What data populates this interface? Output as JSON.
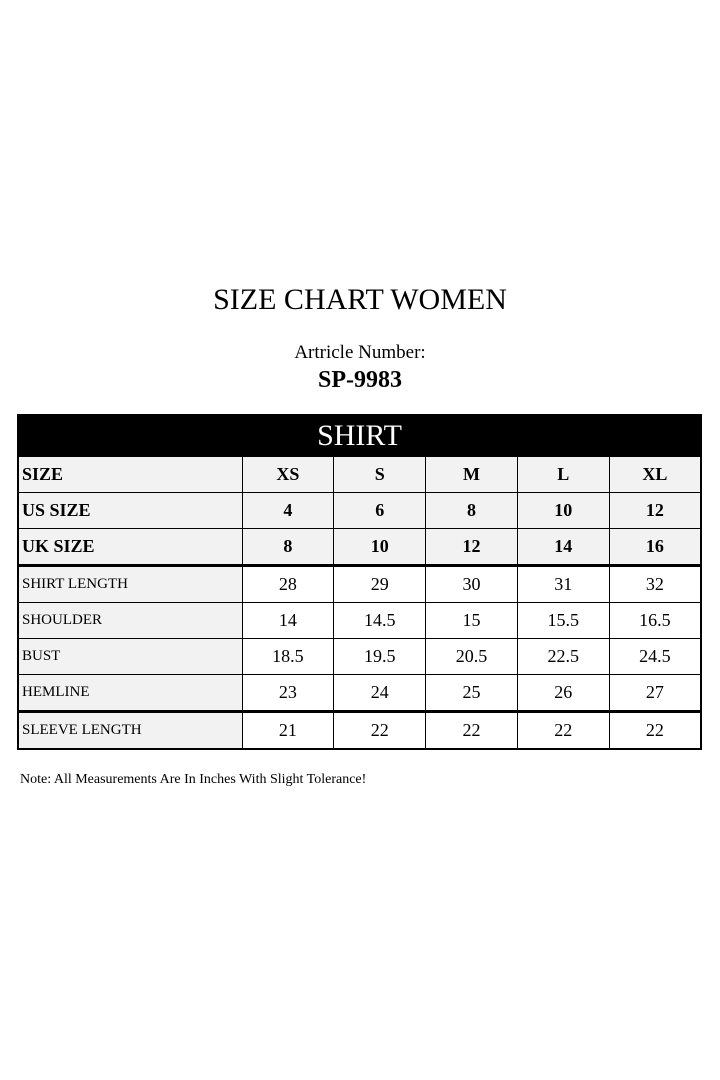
{
  "title": "SIZE CHART WOMEN",
  "article_label": "Artricle Number:",
  "article_number": "SP-9983",
  "table": {
    "section": "SHIRT",
    "header_rows": [
      {
        "label": "SIZE",
        "values": [
          "XS",
          "S",
          "M",
          "L",
          "XL"
        ]
      },
      {
        "label": "US SIZE",
        "values": [
          "4",
          "6",
          "8",
          "10",
          "12"
        ]
      },
      {
        "label": "UK SIZE",
        "values": [
          "8",
          "10",
          "12",
          "14",
          "16"
        ]
      }
    ],
    "rows": [
      {
        "label": "SHIRT LENGTH",
        "values": [
          "28",
          "29",
          "30",
          "31",
          "32"
        ]
      },
      {
        "label": "SHOULDER",
        "values": [
          "14",
          "14.5",
          "15",
          "15.5",
          "16.5"
        ]
      },
      {
        "label": "BUST",
        "values": [
          "18.5",
          "19.5",
          "20.5",
          "22.5",
          "24.5"
        ]
      },
      {
        "label": "HEMLINE",
        "values": [
          "23",
          "24",
          "25",
          "26",
          "27"
        ]
      },
      {
        "label": "SLEEVE LENGTH",
        "values": [
          "21",
          "22",
          "22",
          "22",
          "22"
        ]
      }
    ]
  },
  "note": "Note: All Measurements Are In Inches With Slight Tolerance!"
}
